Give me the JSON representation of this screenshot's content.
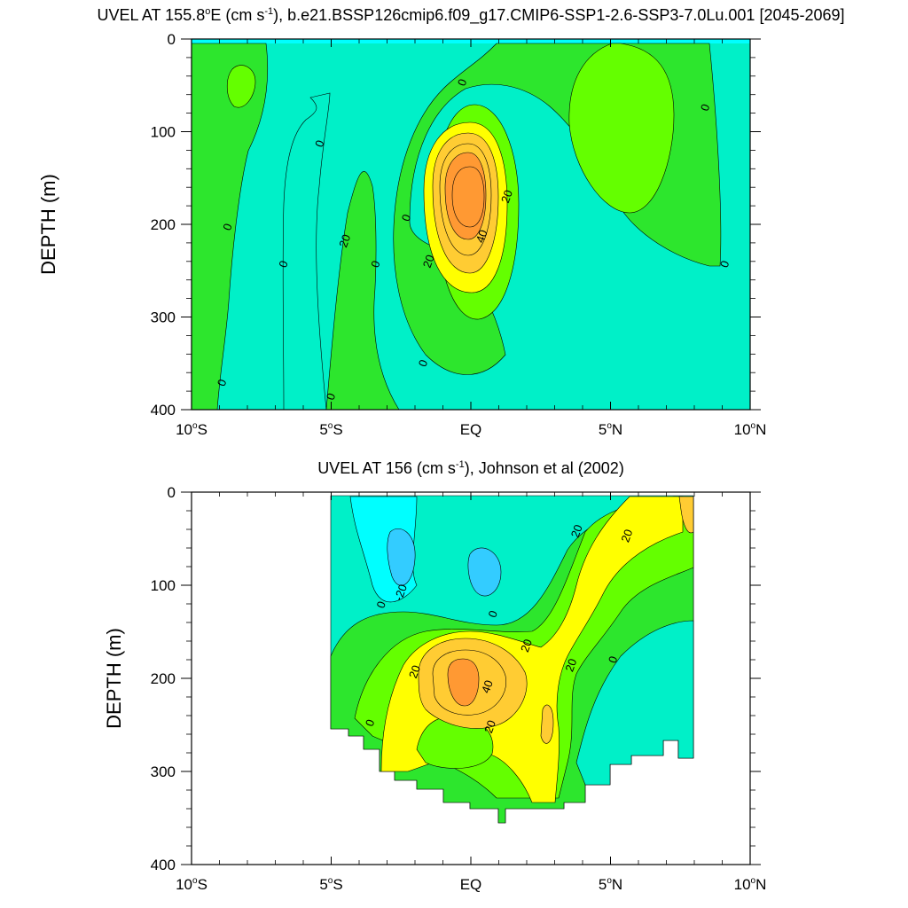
{
  "chart_data": [
    {
      "type": "contour",
      "title_main": "UVEL AT 155.8",
      "title_degree": "o",
      "title_e": "E (cm s",
      "title_sup": "-1",
      "title_rest": "), b.e21.BSSP126cmip6.f09_g17.CMIP6-SSP1-2.6-SSP3-7.0Lu.001 [2045-2069]",
      "ylabel": "DEPTH (m)",
      "x_ticks": [
        {
          "value": -10,
          "label_num": "10",
          "label_deg": "o",
          "label_suffix": "S"
        },
        {
          "value": -5,
          "label_num": "5",
          "label_deg": "o",
          "label_suffix": "S"
        },
        {
          "value": 0,
          "label_num": "EQ",
          "label_deg": "",
          "label_suffix": ""
        },
        {
          "value": 5,
          "label_num": "5",
          "label_deg": "o",
          "label_suffix": "N"
        },
        {
          "value": 10,
          "label_num": "10",
          "label_deg": "o",
          "label_suffix": "N"
        }
      ],
      "y_ticks": [
        0,
        100,
        200,
        300,
        400
      ],
      "xlim": [
        -10,
        10
      ],
      "ylim": [
        400,
        0
      ],
      "contour_labels": [
        {
          "text": "0",
          "x": -8.7,
          "y": 203
        },
        {
          "text": "0",
          "x": -6.7,
          "y": 243
        },
        {
          "text": "0",
          "x": -5.4,
          "y": 113
        },
        {
          "text": "0",
          "x": -3.4,
          "y": 243
        },
        {
          "text": "0",
          "x": -8.9,
          "y": 371
        },
        {
          "text": "0",
          "x": -5.0,
          "y": 386
        },
        {
          "text": "0",
          "x": -2.3,
          "y": 193
        },
        {
          "text": "0",
          "x": -0.3,
          "y": 47
        },
        {
          "text": "0",
          "x": 8.4,
          "y": 74
        },
        {
          "text": "0",
          "x": 9.1,
          "y": 243
        },
        {
          "text": "0",
          "x": -1.7,
          "y": 350
        },
        {
          "text": "20",
          "x": -4.5,
          "y": 218
        },
        {
          "text": "20",
          "x": -1.5,
          "y": 240
        },
        {
          "text": "20",
          "x": 1.3,
          "y": 170
        },
        {
          "text": "40",
          "x": 0.4,
          "y": 213
        }
      ]
    },
    {
      "type": "contour",
      "title_main": "UVEL AT 156 (cm s",
      "title_sup": "-1",
      "title_rest": "), Johnson et al (2002)",
      "ylabel": "DEPTH (m)",
      "x_ticks": [
        {
          "value": -10,
          "label_num": "10",
          "label_deg": "o",
          "label_suffix": "S"
        },
        {
          "value": -5,
          "label_num": "5",
          "label_deg": "o",
          "label_suffix": "S"
        },
        {
          "value": 0,
          "label_num": "EQ",
          "label_deg": "",
          "label_suffix": ""
        },
        {
          "value": 5,
          "label_num": "5",
          "label_deg": "o",
          "label_suffix": "N"
        },
        {
          "value": 10,
          "label_num": "10",
          "label_deg": "o",
          "label_suffix": "N"
        }
      ],
      "y_ticks": [
        0,
        100,
        200,
        300,
        400
      ],
      "xlim": [
        -10,
        10
      ],
      "ylim": [
        400,
        0
      ],
      "contour_labels": [
        {
          "text": "-20",
          "x": -2.5,
          "y": 108
        },
        {
          "text": "0",
          "x": -3.2,
          "y": 121
        },
        {
          "text": "0",
          "x": 0.8,
          "y": 131
        },
        {
          "text": "0",
          "x": -3.6,
          "y": 248
        },
        {
          "text": "0",
          "x": 5.1,
          "y": 180
        },
        {
          "text": "20",
          "x": 3.8,
          "y": 42
        },
        {
          "text": "20",
          "x": 5.6,
          "y": 47
        },
        {
          "text": "20",
          "x": 2.0,
          "y": 165
        },
        {
          "text": "20",
          "x": 3.6,
          "y": 186
        },
        {
          "text": "20",
          "x": -2.0,
          "y": 193
        },
        {
          "text": "20",
          "x": 0.7,
          "y": 252
        },
        {
          "text": "40",
          "x": 0.6,
          "y": 209
        }
      ]
    }
  ],
  "colors": {
    "cyan_neg20_0": "#00ffff",
    "aqua_0": "#00f0c8",
    "green_0_10": "#2de62d",
    "lime_10_20": "#64ff00",
    "yellow_20_30": "#ffff00",
    "lightorange_30_40": "#ffcc33",
    "orange_40_50": "#ff9933",
    "deep_neg": "#33ccff"
  }
}
